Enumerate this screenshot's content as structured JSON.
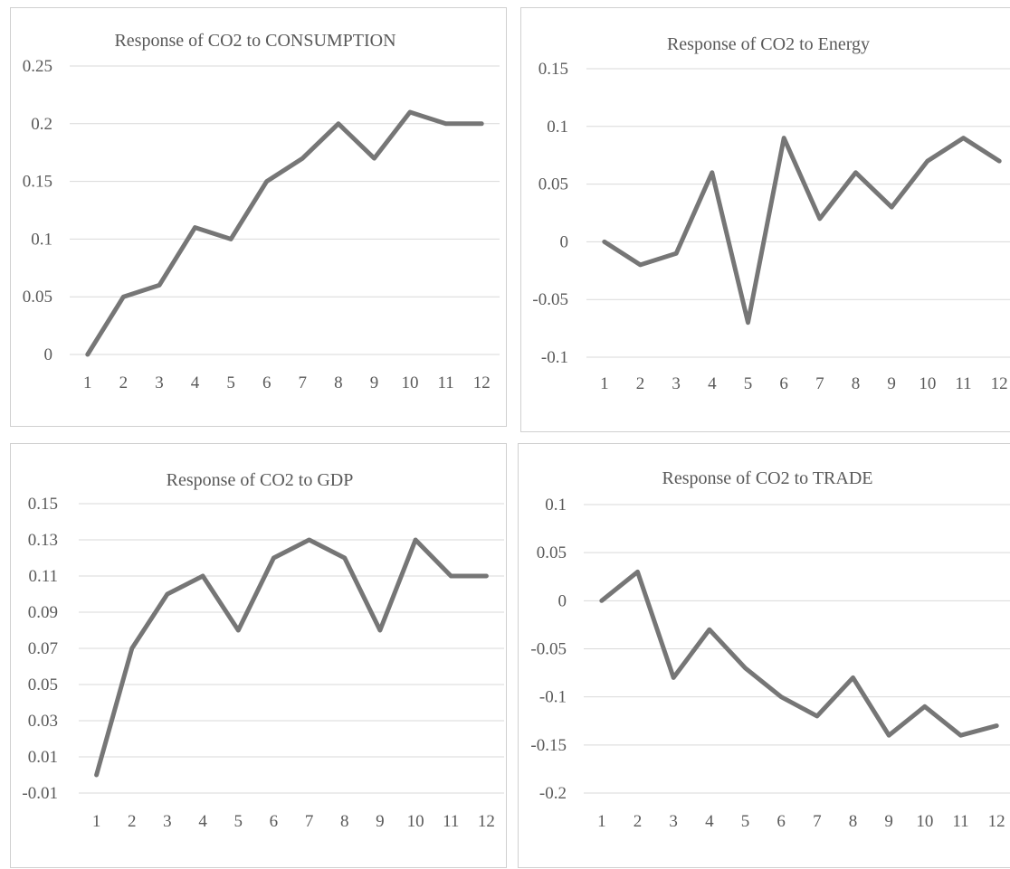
{
  "chart_data": [
    {
      "type": "line",
      "title": "Response of CO2 to CONSUMPTION",
      "categories": [
        "1",
        "2",
        "3",
        "4",
        "5",
        "6",
        "7",
        "8",
        "9",
        "10",
        "11",
        "12"
      ],
      "values": [
        0,
        0.05,
        0.06,
        0.11,
        0.1,
        0.15,
        0.17,
        0.2,
        0.17,
        0.21,
        0.2,
        0.2
      ],
      "yticks": [
        "0.25",
        "0.2",
        "0.15",
        "0.1",
        "0.05",
        "0"
      ],
      "ylim": [
        0,
        0.25
      ],
      "grid": true,
      "color": "#767676"
    },
    {
      "type": "line",
      "title": "Response of CO2 to Energy",
      "categories": [
        "1",
        "2",
        "3",
        "4",
        "5",
        "6",
        "7",
        "8",
        "9",
        "10",
        "11",
        "12"
      ],
      "values": [
        0,
        -0.02,
        -0.01,
        0.06,
        -0.07,
        0.09,
        0.02,
        0.06,
        0.03,
        0.07,
        0.09,
        0.07
      ],
      "yticks": [
        "0.15",
        "0.1",
        "0.05",
        "0",
        "-0.05",
        "-0.1"
      ],
      "ylim": [
        -0.1,
        0.15
      ],
      "grid": true,
      "color": "#767676"
    },
    {
      "type": "line",
      "title": "Response of CO2 to GDP",
      "categories": [
        "1",
        "2",
        "3",
        "4",
        "5",
        "6",
        "7",
        "8",
        "9",
        "10",
        "11",
        "12"
      ],
      "values": [
        0.0,
        0.07,
        0.1,
        0.11,
        0.08,
        0.12,
        0.13,
        0.12,
        0.08,
        0.13,
        0.11,
        0.11
      ],
      "yticks": [
        "0.15",
        "0.13",
        "0.11",
        "0.09",
        "0.07",
        "0.05",
        "0.03",
        "0.01",
        "-0.01"
      ],
      "ylim": [
        -0.01,
        0.15
      ],
      "grid": true,
      "color": "#767676"
    },
    {
      "type": "line",
      "title": "Response of CO2 to TRADE",
      "categories": [
        "1",
        "2",
        "3",
        "4",
        "5",
        "6",
        "7",
        "8",
        "9",
        "10",
        "11",
        "12"
      ],
      "values": [
        0,
        0.03,
        -0.08,
        -0.03,
        -0.07,
        -0.1,
        -0.12,
        -0.08,
        -0.14,
        -0.11,
        -0.14,
        -0.13
      ],
      "yticks": [
        "0.1",
        "0.05",
        "0",
        "-0.05",
        "-0.1",
        "-0.15",
        "-0.2"
      ],
      "ylim": [
        -0.2,
        0.1
      ],
      "grid": true,
      "color": "#767676"
    }
  ]
}
